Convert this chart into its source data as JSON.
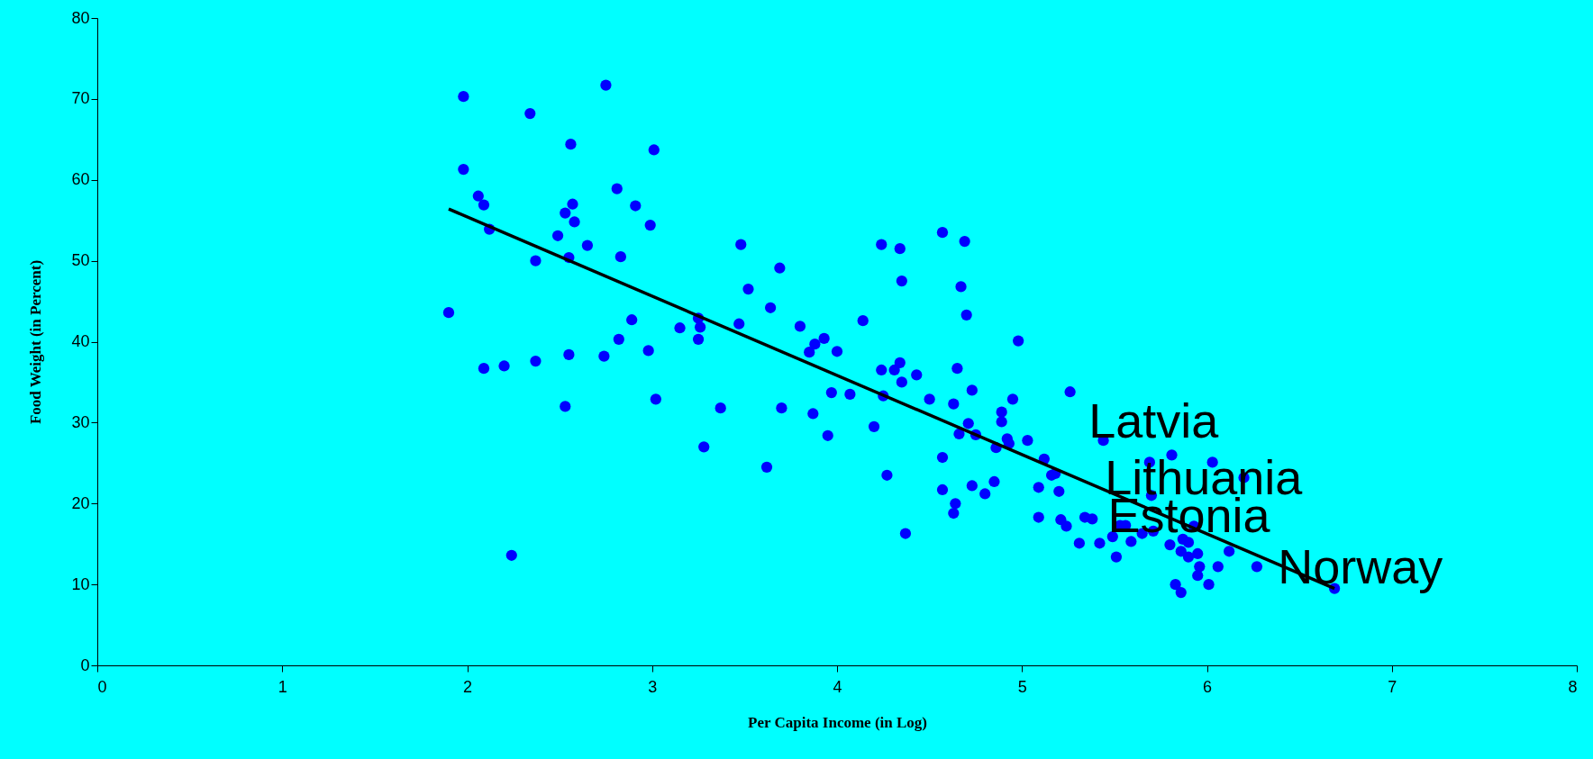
{
  "chart_data": {
    "type": "scatter",
    "xlabel": "Per Capita Income (in Log)",
    "ylabel": "Food Weight (in Percent)",
    "xlim": [
      0,
      8
    ],
    "xticks": [
      0,
      1,
      2,
      3,
      4,
      5,
      6,
      7,
      8
    ],
    "ylim": [
      0,
      80
    ],
    "yticks": [
      0,
      10,
      20,
      30,
      40,
      50,
      60,
      70,
      80
    ],
    "series": [
      {
        "marker": "circle",
        "color": "#0000ff",
        "x": [
          1.9,
          1.98,
          1.98,
          2.06,
          2.09,
          2.12,
          2.09,
          2.2,
          2.24,
          2.34,
          2.37,
          2.37,
          2.49,
          2.53,
          2.53,
          2.55,
          2.55,
          2.56,
          2.57,
          2.58,
          2.65,
          2.75,
          2.74,
          2.81,
          2.83,
          2.82,
          2.89,
          2.91,
          2.98,
          2.99,
          3.01,
          3.02,
          3.15,
          3.25,
          3.26,
          3.25,
          3.28,
          3.37,
          3.47,
          3.48,
          3.52,
          3.62,
          3.64,
          3.69,
          3.7,
          3.8,
          3.85,
          3.88,
          3.87,
          3.93,
          3.95,
          3.97,
          4.0,
          4.07,
          4.14,
          4.2,
          4.24,
          4.24,
          4.25,
          4.27,
          4.31,
          4.34,
          4.34,
          4.35,
          4.35,
          4.37,
          4.43,
          4.5,
          4.57,
          4.57,
          4.57,
          4.63,
          4.64,
          4.63,
          4.65,
          4.66,
          4.67,
          4.69,
          4.7,
          4.71,
          4.73,
          4.73,
          4.75,
          4.8,
          4.85,
          4.86,
          4.89,
          4.89,
          4.92,
          4.93,
          4.95,
          4.98,
          5.03,
          5.09,
          5.09,
          5.12,
          5.16,
          5.18,
          5.2,
          5.21,
          5.24,
          5.26,
          5.31,
          5.34,
          5.38,
          5.42,
          5.44,
          5.49,
          5.51,
          5.53,
          5.56,
          5.59,
          5.65,
          5.69,
          5.7,
          5.71,
          5.8,
          5.81,
          5.83,
          5.86,
          5.86,
          5.87,
          5.9,
          5.9,
          5.93,
          5.95,
          5.96,
          5.95,
          6.01,
          6.03,
          6.06,
          6.12,
          6.2,
          6.27,
          6.69
        ],
        "values": [
          43.6,
          70.3,
          61.3,
          58.0,
          56.9,
          53.9,
          36.7,
          37.0,
          13.6,
          68.2,
          50.0,
          37.6,
          53.1,
          55.9,
          32.0,
          50.4,
          38.4,
          64.4,
          57.0,
          54.8,
          51.9,
          71.7,
          38.2,
          58.9,
          50.5,
          40.3,
          42.7,
          56.8,
          38.9,
          54.4,
          63.7,
          32.9,
          41.7,
          42.9,
          41.8,
          40.3,
          27.0,
          31.8,
          42.2,
          52.0,
          46.5,
          24.5,
          44.2,
          49.1,
          31.8,
          41.9,
          38.7,
          39.7,
          31.1,
          40.4,
          28.4,
          33.7,
          38.8,
          33.5,
          42.6,
          29.5,
          52.0,
          36.5,
          33.3,
          23.5,
          36.5,
          51.5,
          37.4,
          35.0,
          47.5,
          16.3,
          35.9,
          32.9,
          53.5,
          25.7,
          21.7,
          32.3,
          20.0,
          18.8,
          36.7,
          28.6,
          46.8,
          52.4,
          43.3,
          29.9,
          34.0,
          22.2,
          28.5,
          21.2,
          22.7,
          26.9,
          31.3,
          30.1,
          28.0,
          27.4,
          32.9,
          40.1,
          27.8,
          18.3,
          22.0,
          25.5,
          23.5,
          23.7,
          21.5,
          18.0,
          17.2,
          33.8,
          15.1,
          18.3,
          18.1,
          15.1,
          27.8,
          15.9,
          13.4,
          17.3,
          17.3,
          15.3,
          16.3,
          25.1,
          21.0,
          16.6,
          14.9,
          26.0,
          10.0,
          9.0,
          14.1,
          15.6,
          15.2,
          13.4,
          17.2,
          13.8,
          12.2,
          11.1,
          10.0,
          25.1,
          12.2,
          14.1,
          23.2,
          12.2,
          9.5
        ]
      },
      {
        "type": "line",
        "color": "#000000",
        "x": [
          1.9,
          6.69
        ],
        "values": [
          56.4,
          9.5
        ]
      }
    ],
    "annotations": [
      "Latvia",
      "Lithuania",
      "Estonia",
      "Norway"
    ]
  }
}
